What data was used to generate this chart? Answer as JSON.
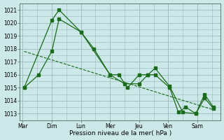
{
  "xlabel": "Pression niveau de la mer( hPa )",
  "background_color": "#cce8e8",
  "grid_color": "#99bbbb",
  "line_color": "#1a6b1a",
  "ylim": [
    1012.5,
    1021.5
  ],
  "yticks": [
    1013,
    1014,
    1015,
    1016,
    1017,
    1018,
    1019,
    1020,
    1021
  ],
  "day_labels": [
    "Mar",
    "Dim",
    "Lun",
    "Mer",
    "Jeu",
    "Ven",
    "Sam"
  ],
  "day_positions": [
    0,
    1,
    2,
    3,
    4,
    5,
    6
  ],
  "xlim": [
    -0.1,
    6.8
  ],
  "series1_x": [
    0.05,
    1.0,
    1.25,
    2.0,
    2.45,
    3.0,
    3.3,
    3.6,
    4.0,
    4.3,
    4.55,
    5.05,
    5.5,
    5.95,
    6.25,
    6.55
  ],
  "series1_y": [
    1015.0,
    1020.2,
    1021.0,
    1019.3,
    1018.0,
    1016.0,
    1016.0,
    1015.0,
    1016.0,
    1016.0,
    1016.5,
    1015.1,
    1013.1,
    1013.0,
    1014.5,
    1013.5
  ],
  "series2_x": [
    0.05,
    0.55,
    1.0,
    1.25,
    2.0,
    3.0,
    3.5,
    4.0,
    4.3,
    4.55,
    5.05,
    5.35,
    5.6,
    5.95,
    6.25,
    6.55
  ],
  "series2_y": [
    1015.0,
    1016.0,
    1017.8,
    1020.3,
    1019.3,
    1016.0,
    1015.3,
    1015.3,
    1016.0,
    1016.0,
    1015.0,
    1013.1,
    1013.5,
    1013.0,
    1014.2,
    1013.4
  ],
  "trend_x": [
    0.05,
    6.55
  ],
  "trend_y": [
    1017.8,
    1013.3
  ]
}
